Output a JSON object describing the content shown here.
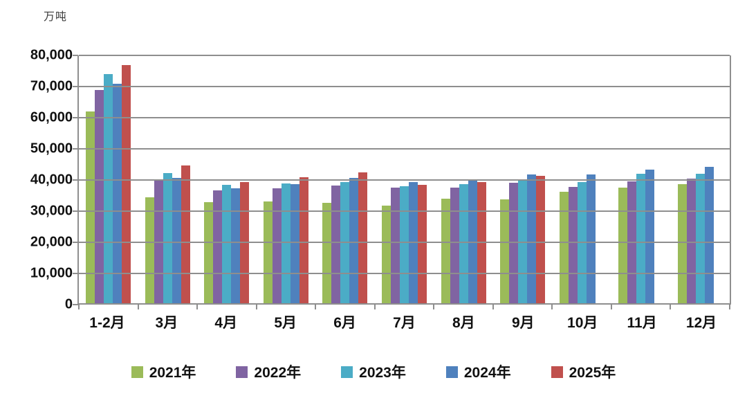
{
  "chart": {
    "unit_label": "万吨"
  },
  "chart_data": {
    "type": "bar",
    "title": "",
    "unit": "万吨",
    "ylabel": "万吨",
    "xlabel": "",
    "ylim": [
      0,
      80000
    ],
    "ytick_interval": 10000,
    "ytick_labels": [
      "0",
      "10,000",
      "20,000",
      "30,000",
      "40,000",
      "50,000",
      "60,000",
      "70,000",
      "80,000"
    ],
    "grid": true,
    "legend_position": "bottom",
    "grid_color": "#8e8e8e",
    "categories": [
      "1-2月",
      "3月",
      "4月",
      "5月",
      "6月",
      "7月",
      "8月",
      "9月",
      "10月",
      "11月",
      "12月"
    ],
    "series": [
      {
        "name": "2021年",
        "color": "#9BBB59",
        "values": [
          61500,
          34100,
          32400,
          32700,
          32300,
          31300,
          33600,
          33400,
          35900,
          37200,
          38300
        ]
      },
      {
        "name": "2022年",
        "color": "#8064A2",
        "values": [
          68500,
          39600,
          36200,
          36800,
          37800,
          37200,
          37200,
          38600,
          37300,
          39100,
          40000
        ]
      },
      {
        "name": "2023年",
        "color": "#4BACC6",
        "values": [
          73500,
          41800,
          38100,
          38500,
          38800,
          37600,
          38200,
          39300,
          38900,
          41600,
          41500
        ]
      },
      {
        "name": "2024年",
        "color": "#4F81BD",
        "values": [
          70400,
          40200,
          37000,
          38300,
          40300,
          38900,
          39800,
          41400,
          41300,
          42800,
          43800
        ]
      },
      {
        "name": "2025年",
        "color": "#C0504D",
        "values": [
          76500,
          44200,
          38800,
          40400,
          42100,
          38100,
          39000,
          41000,
          null,
          null,
          null
        ]
      }
    ]
  }
}
